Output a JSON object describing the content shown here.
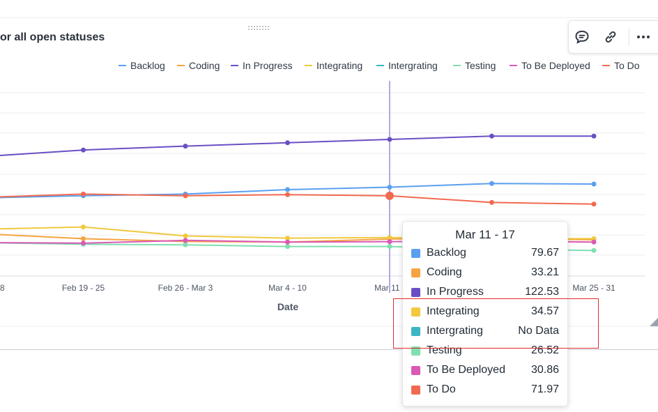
{
  "widget": {
    "title": "or all open statuses",
    "toolbar": [
      "comment-icon",
      "link-icon",
      "more-icon"
    ]
  },
  "chart_data": {
    "type": "line",
    "xlabel": "Date",
    "ylabel": "",
    "categories": [
      "",
      "Feb 19 - 25",
      "Feb 26 - Mar 3",
      "Mar 4 - 10",
      "Mar 11 - 17",
      "",
      "Mar 25 - 31"
    ],
    "tick_labels": [
      "8",
      "Feb 19 - 25",
      "Feb 26 - Mar 3",
      "Mar 4 - 10",
      "Mar 11 -",
      "",
      "Mar 25 - 31"
    ],
    "ylim": [
      0,
      182
    ],
    "grid": true,
    "legend_position": "top-right",
    "hover_index": 4,
    "series": [
      {
        "name": "Backlog",
        "color": "#5b9ff0",
        "values": [
          70,
          72,
          73.5,
          77.5,
          79.67,
          83,
          82.5
        ]
      },
      {
        "name": "Coding",
        "color": "#f5a441",
        "values": [
          38,
          33.5,
          31,
          30.5,
          33.21,
          34,
          32.5
        ]
      },
      {
        "name": "In Progress",
        "color": "#6a4fc4",
        "values": [
          107,
          113,
          116.5,
          119.5,
          122.53,
          125.5,
          125.5
        ]
      },
      {
        "name": "Integrating",
        "color": "#f0c93f",
        "values": [
          42,
          44,
          36,
          34,
          34.57,
          33.5,
          33.5
        ]
      },
      {
        "name": "Intergrating",
        "color": "#3bb5c4",
        "values": [
          null,
          null,
          null,
          null,
          null,
          null,
          null
        ]
      },
      {
        "name": "Testing",
        "color": "#7fdfb0",
        "values": [
          30,
          28.5,
          28,
          26.5,
          26.52,
          24,
          23
        ]
      },
      {
        "name": "To Be Deployed",
        "color": "#d95ab5",
        "values": [
          30,
          29.5,
          32,
          30.5,
          30.86,
          31.5,
          30.5
        ]
      },
      {
        "name": "To Do",
        "color": "#f06a50",
        "values": [
          70.5,
          73.5,
          72,
          73,
          71.97,
          66,
          64.5
        ]
      }
    ]
  },
  "tooltip": {
    "title": "Mar 11 - 17",
    "rows": [
      {
        "label": "Backlog",
        "value": "79.67",
        "color": "#5b9ff0"
      },
      {
        "label": "Coding",
        "value": "33.21",
        "color": "#f5a441"
      },
      {
        "label": "In Progress",
        "value": "122.53",
        "color": "#6a4fc4"
      },
      {
        "label": "Integrating",
        "value": "34.57",
        "color": "#f0c93f"
      },
      {
        "label": "Intergrating",
        "value": "No Data",
        "color": "#3bb5c4"
      },
      {
        "label": "Testing",
        "value": "26.52",
        "color": "#7fdfb0"
      },
      {
        "label": "To Be Deployed",
        "value": "30.86",
        "color": "#d95ab5"
      },
      {
        "label": "To Do",
        "value": "71.97",
        "color": "#f06a50"
      }
    ]
  }
}
